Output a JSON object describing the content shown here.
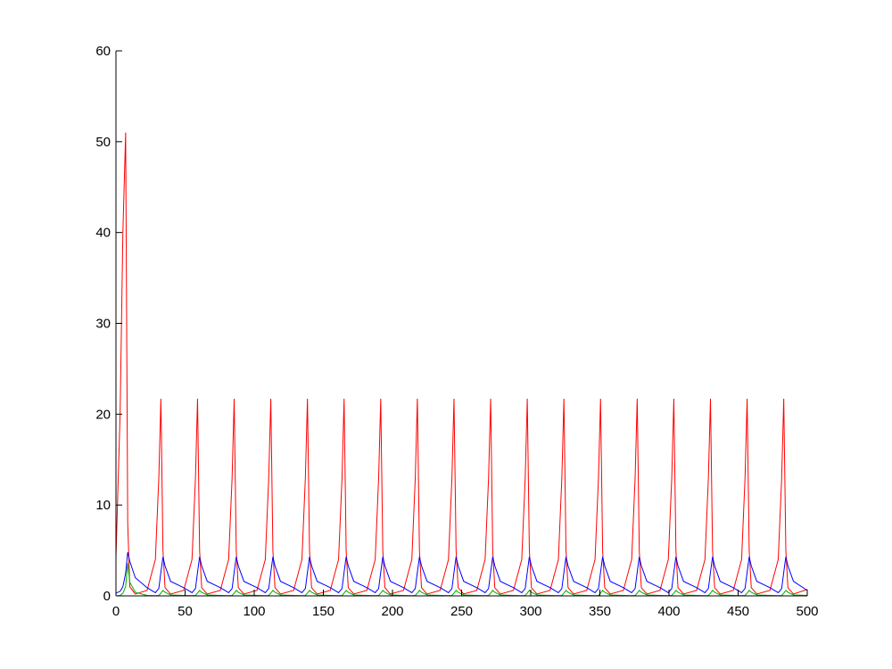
{
  "chart_data": {
    "type": "line",
    "x": [
      0,
      3,
      5,
      7,
      8.5,
      10,
      14,
      22.5,
      28.5,
      31,
      32.5,
      34,
      35.5,
      39.5,
      49,
      55,
      57.5,
      59,
      60.5,
      62,
      66,
      75.5,
      81.5,
      84,
      85.5,
      87,
      88.5,
      92.5,
      102,
      108,
      110.5,
      112,
      113.5,
      115,
      119,
      128.5,
      134.5,
      137,
      138.5,
      140,
      141.5,
      145.5,
      155,
      161,
      163.5,
      165,
      166.5,
      168,
      172,
      181.5,
      187.5,
      190,
      191.5,
      193,
      194.5,
      198.5,
      208,
      214,
      216.5,
      218,
      219.5,
      221,
      225,
      234.5,
      240.5,
      243,
      244.5,
      246,
      247.5,
      251.5,
      261,
      267,
      269.5,
      271,
      272.5,
      274,
      278,
      287.5,
      293.5,
      296,
      297.5,
      299,
      300.5,
      304.5,
      314,
      320,
      322.5,
      324,
      325.5,
      327,
      331,
      340.5,
      346.5,
      349,
      350.5,
      352,
      353.5,
      357.5,
      367,
      373,
      375.5,
      377,
      378.5,
      380,
      384,
      393.5,
      399.5,
      402,
      403.5,
      405,
      406.5,
      410.5,
      420,
      426,
      428.5,
      430,
      431.5,
      433,
      437,
      446.5,
      452.5,
      455,
      456.5,
      458,
      459.5,
      463.5,
      473,
      479,
      481.5,
      483,
      484.5,
      486,
      490,
      500
    ],
    "series": [
      {
        "color": "#ff0000",
        "values": [
          4.3,
          20,
          40,
          51,
          8,
          1,
          0.2,
          0.6,
          4,
          13,
          21.7,
          5,
          0.9,
          0.2,
          0.6,
          4,
          13,
          21.7,
          5,
          0.9,
          0.2,
          0.6,
          4,
          13,
          21.7,
          5,
          0.9,
          0.2,
          0.6,
          4,
          13,
          21.7,
          5,
          0.9,
          0.2,
          0.6,
          4,
          13,
          21.7,
          5,
          0.9,
          0.2,
          0.6,
          4,
          13,
          21.7,
          5,
          0.9,
          0.2,
          0.6,
          4,
          13,
          21.7,
          5,
          0.9,
          0.2,
          0.6,
          4,
          13,
          21.7,
          5,
          0.9,
          0.2,
          0.6,
          4,
          13,
          21.7,
          5,
          0.9,
          0.2,
          0.6,
          4,
          13,
          21.7,
          5,
          0.9,
          0.2,
          0.6,
          4,
          13,
          21.7,
          5,
          0.9,
          0.2,
          0.6,
          4,
          13,
          21.7,
          5,
          0.9,
          0.2,
          0.6,
          4,
          13,
          21.7,
          5,
          0.9,
          0.2,
          0.6,
          4,
          13,
          21.7,
          5,
          0.9,
          0.2,
          0.6,
          4,
          13,
          21.7,
          5,
          0.9,
          0.2,
          0.6,
          4,
          13,
          21.7,
          5,
          0.9,
          0.2,
          0.6,
          4,
          13,
          21.7,
          5,
          0.9,
          0.2,
          0.6,
          4,
          13,
          21.7,
          5,
          0.9,
          0.2,
          0.7
        ]
      },
      {
        "color": "#0000ff",
        "values": [
          0.3,
          0.5,
          1,
          2.5,
          4.8,
          3.8,
          2,
          0.9,
          0.35,
          0.8,
          2.6,
          4.3,
          3.3,
          1.6,
          0.9,
          0.35,
          0.8,
          2.6,
          4.3,
          3.3,
          1.6,
          0.9,
          0.35,
          0.8,
          2.6,
          4.3,
          3.3,
          1.6,
          0.9,
          0.35,
          0.8,
          2.6,
          4.3,
          3.3,
          1.6,
          0.9,
          0.35,
          0.8,
          2.6,
          4.3,
          3.3,
          1.6,
          0.9,
          0.35,
          0.8,
          2.6,
          4.3,
          3.3,
          1.6,
          0.9,
          0.35,
          0.8,
          2.6,
          4.3,
          3.3,
          1.6,
          0.9,
          0.35,
          0.8,
          2.6,
          4.3,
          3.3,
          1.6,
          0.9,
          0.35,
          0.8,
          2.6,
          4.3,
          3.3,
          1.6,
          0.9,
          0.35,
          0.8,
          2.6,
          4.3,
          3.3,
          1.6,
          0.9,
          0.35,
          0.8,
          2.6,
          4.3,
          3.3,
          1.6,
          0.9,
          0.35,
          0.8,
          2.6,
          4.3,
          3.3,
          1.6,
          0.9,
          0.35,
          0.8,
          2.6,
          4.3,
          3.3,
          1.6,
          0.9,
          0.35,
          0.8,
          2.6,
          4.3,
          3.3,
          1.6,
          0.9,
          0.35,
          0.8,
          2.6,
          4.3,
          3.3,
          1.6,
          0.9,
          0.35,
          0.8,
          2.6,
          4.3,
          3.3,
          1.6,
          0.9,
          0.35,
          0.8,
          2.6,
          4.3,
          3.3,
          1.6,
          0.9,
          0.35,
          0.8,
          2.6,
          4.3,
          3.3,
          1.6,
          0.6
        ]
      },
      {
        "color": "#00b000",
        "values": [
          0,
          0.05,
          0.3,
          1,
          3.6,
          1.5,
          0.4,
          0.05,
          0.02,
          0.05,
          0.3,
          0.6,
          0.4,
          0.1,
          0.05,
          0.02,
          0.05,
          0.3,
          0.6,
          0.4,
          0.1,
          0.05,
          0.02,
          0.05,
          0.3,
          0.6,
          0.4,
          0.1,
          0.05,
          0.02,
          0.05,
          0.3,
          0.6,
          0.4,
          0.1,
          0.05,
          0.02,
          0.05,
          0.3,
          0.6,
          0.4,
          0.1,
          0.05,
          0.02,
          0.05,
          0.3,
          0.6,
          0.4,
          0.1,
          0.05,
          0.02,
          0.05,
          0.3,
          0.6,
          0.4,
          0.1,
          0.05,
          0.02,
          0.05,
          0.3,
          0.6,
          0.4,
          0.1,
          0.05,
          0.02,
          0.05,
          0.3,
          0.6,
          0.4,
          0.1,
          0.05,
          0.02,
          0.05,
          0.3,
          0.6,
          0.4,
          0.1,
          0.05,
          0.02,
          0.05,
          0.3,
          0.6,
          0.4,
          0.1,
          0.05,
          0.02,
          0.05,
          0.3,
          0.6,
          0.4,
          0.1,
          0.05,
          0.02,
          0.05,
          0.3,
          0.6,
          0.4,
          0.1,
          0.05,
          0.02,
          0.05,
          0.3,
          0.6,
          0.4,
          0.1,
          0.05,
          0.02,
          0.05,
          0.3,
          0.6,
          0.4,
          0.1,
          0.05,
          0.02,
          0.05,
          0.3,
          0.6,
          0.4,
          0.1,
          0.05,
          0.02,
          0.05,
          0.3,
          0.6,
          0.4,
          0.1,
          0.05,
          0.02,
          0.05,
          0.3,
          0.6,
          0.4,
          0.1,
          0.05
        ]
      }
    ],
    "xlim": [
      0,
      500
    ],
    "xticks": [
      0,
      50,
      100,
      150,
      200,
      250,
      300,
      350,
      400,
      450,
      500
    ],
    "ylim": [
      0,
      60
    ],
    "yticks": [
      0,
      10,
      20,
      30,
      40,
      50,
      60
    ],
    "grid": false
  }
}
